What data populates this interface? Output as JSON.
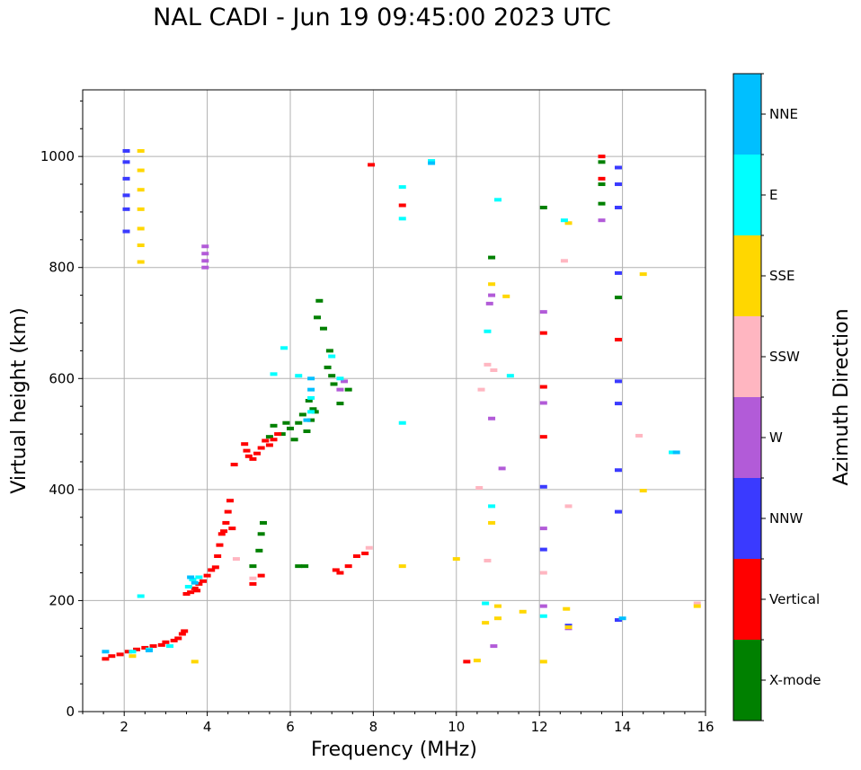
{
  "chart_data": {
    "type": "scatter",
    "title": "NAL CADI - Jun 19 09:45:00 2023 UTC",
    "xlabel": "Frequency (MHz)",
    "ylabel": "Virtual height (km)",
    "xlim": [
      1,
      16
    ],
    "ylim": [
      0,
      1120
    ],
    "xticks": [
      2,
      4,
      6,
      8,
      10,
      12,
      14,
      16
    ],
    "yticks": [
      0,
      200,
      400,
      600,
      800,
      1000
    ],
    "grid": true,
    "colorbar": {
      "label": "Azimuth Direction",
      "categories": [
        "X-mode",
        "Vertical",
        "NNW",
        "W",
        "SSW",
        "SSE",
        "E",
        "NNE"
      ],
      "colors": [
        "#008000",
        "#ff0000",
        "#3a3aff",
        "#b25bd8",
        "#ffb6c1",
        "#ffd700",
        "#00ffff",
        "#00bfff"
      ]
    },
    "series": [
      {
        "name": "X-mode",
        "points": [
          [
            5.1,
            262
          ],
          [
            5.25,
            290
          ],
          [
            5.3,
            320
          ],
          [
            5.35,
            340
          ],
          [
            5.5,
            495
          ],
          [
            5.6,
            515
          ],
          [
            5.8,
            500
          ],
          [
            5.9,
            520
          ],
          [
            6.0,
            510
          ],
          [
            6.1,
            490
          ],
          [
            6.2,
            520
          ],
          [
            6.2,
            262
          ],
          [
            6.3,
            535
          ],
          [
            6.35,
            262
          ],
          [
            6.4,
            505
          ],
          [
            6.45,
            560
          ],
          [
            6.6,
            540
          ],
          [
            6.65,
            710
          ],
          [
            6.7,
            740
          ],
          [
            6.8,
            690
          ],
          [
            6.9,
            620
          ],
          [
            6.95,
            650
          ],
          [
            7.0,
            605
          ],
          [
            7.05,
            590
          ],
          [
            7.2,
            555
          ],
          [
            7.4,
            580
          ],
          [
            6.5,
            525
          ],
          [
            6.55,
            545
          ],
          [
            10.85,
            818
          ],
          [
            12.1,
            908
          ],
          [
            13.9,
            746
          ],
          [
            13.5,
            990
          ],
          [
            13.5,
            950
          ],
          [
            13.5,
            915
          ]
        ]
      },
      {
        "name": "Vertical",
        "points": [
          [
            1.55,
            95
          ],
          [
            1.7,
            100
          ],
          [
            1.9,
            103
          ],
          [
            2.1,
            108
          ],
          [
            2.3,
            112
          ],
          [
            2.5,
            115
          ],
          [
            2.7,
            118
          ],
          [
            2.9,
            120
          ],
          [
            3.0,
            125
          ],
          [
            3.2,
            128
          ],
          [
            3.3,
            132
          ],
          [
            3.4,
            140
          ],
          [
            3.45,
            145
          ],
          [
            3.5,
            212
          ],
          [
            3.6,
            215
          ],
          [
            3.7,
            222
          ],
          [
            3.75,
            218
          ],
          [
            3.8,
            230
          ],
          [
            3.9,
            235
          ],
          [
            4.0,
            245
          ],
          [
            4.1,
            255
          ],
          [
            4.2,
            260
          ],
          [
            4.25,
            280
          ],
          [
            4.3,
            300
          ],
          [
            4.35,
            320
          ],
          [
            4.4,
            325
          ],
          [
            4.45,
            340
          ],
          [
            4.5,
            360
          ],
          [
            4.55,
            380
          ],
          [
            4.6,
            330
          ],
          [
            4.65,
            445
          ],
          [
            4.9,
            482
          ],
          [
            4.95,
            470
          ],
          [
            5.0,
            460
          ],
          [
            5.1,
            455
          ],
          [
            5.2,
            465
          ],
          [
            5.3,
            475
          ],
          [
            5.4,
            488
          ],
          [
            5.5,
            480
          ],
          [
            5.6,
            490
          ],
          [
            5.7,
            500
          ],
          [
            5.1,
            230
          ],
          [
            5.3,
            245
          ],
          [
            7.1,
            255
          ],
          [
            7.2,
            250
          ],
          [
            7.4,
            262
          ],
          [
            7.6,
            280
          ],
          [
            7.8,
            285
          ],
          [
            7.95,
            985
          ],
          [
            8.7,
            912
          ],
          [
            10.25,
            90
          ],
          [
            12.1,
            585
          ],
          [
            12.1,
            495
          ],
          [
            12.1,
            682
          ],
          [
            13.9,
            670
          ],
          [
            13.5,
            1000
          ],
          [
            13.5,
            960
          ]
        ]
      },
      {
        "name": "NNW",
        "points": [
          [
            2.05,
            1010
          ],
          [
            2.05,
            990
          ],
          [
            2.05,
            960
          ],
          [
            2.05,
            930
          ],
          [
            2.05,
            905
          ],
          [
            2.05,
            865
          ],
          [
            12.1,
            292
          ],
          [
            12.1,
            405
          ],
          [
            12.7,
            155
          ],
          [
            13.9,
            980
          ],
          [
            13.9,
            950
          ],
          [
            13.9,
            908
          ],
          [
            13.9,
            790
          ],
          [
            13.9,
            595
          ],
          [
            13.9,
            555
          ],
          [
            13.9,
            435
          ],
          [
            13.9,
            360
          ],
          [
            13.9,
            165
          ]
        ]
      },
      {
        "name": "W",
        "points": [
          [
            3.95,
            838
          ],
          [
            3.95,
            825
          ],
          [
            3.95,
            812
          ],
          [
            3.95,
            800
          ],
          [
            7.3,
            595
          ],
          [
            7.2,
            580
          ],
          [
            10.8,
            735
          ],
          [
            10.85,
            750
          ],
          [
            10.85,
            528
          ],
          [
            11.1,
            438
          ],
          [
            10.9,
            118
          ],
          [
            12.1,
            720
          ],
          [
            12.1,
            556
          ],
          [
            12.1,
            330
          ],
          [
            12.1,
            190
          ],
          [
            13.5,
            885
          ],
          [
            12.7,
            150
          ]
        ]
      },
      {
        "name": "SSW",
        "points": [
          [
            4.7,
            275
          ],
          [
            5.1,
            240
          ],
          [
            7.9,
            295
          ],
          [
            10.6,
            580
          ],
          [
            10.75,
            625
          ],
          [
            10.9,
            615
          ],
          [
            10.55,
            403
          ],
          [
            10.75,
            272
          ],
          [
            12.1,
            250
          ],
          [
            12.7,
            370
          ],
          [
            14.4,
            497
          ],
          [
            12.6,
            812
          ],
          [
            15.8,
            195
          ]
        ]
      },
      {
        "name": "SSE",
        "points": [
          [
            2.4,
            1010
          ],
          [
            2.4,
            975
          ],
          [
            2.4,
            940
          ],
          [
            2.4,
            905
          ],
          [
            2.4,
            870
          ],
          [
            2.4,
            840
          ],
          [
            2.4,
            810
          ],
          [
            2.2,
            100
          ],
          [
            3.7,
            90
          ],
          [
            8.7,
            262
          ],
          [
            10.0,
            275
          ],
          [
            10.85,
            340
          ],
          [
            10.85,
            770
          ],
          [
            11.2,
            748
          ],
          [
            11.0,
            190
          ],
          [
            11.0,
            168
          ],
          [
            10.7,
            160
          ],
          [
            10.5,
            92
          ],
          [
            11.6,
            180
          ],
          [
            12.1,
            90
          ],
          [
            12.65,
            185
          ],
          [
            12.7,
            152
          ],
          [
            12.7,
            880
          ],
          [
            14.5,
            788
          ],
          [
            14.5,
            398
          ],
          [
            15.8,
            190
          ]
        ]
      },
      {
        "name": "E",
        "points": [
          [
            2.2,
            108
          ],
          [
            2.4,
            208
          ],
          [
            2.6,
            112
          ],
          [
            3.1,
            118
          ],
          [
            3.55,
            225
          ],
          [
            3.65,
            238
          ],
          [
            3.8,
            242
          ],
          [
            5.6,
            608
          ],
          [
            5.85,
            655
          ],
          [
            6.2,
            605
          ],
          [
            6.5,
            540
          ],
          [
            6.5,
            565
          ],
          [
            7.2,
            600
          ],
          [
            7.0,
            640
          ],
          [
            8.7,
            945
          ],
          [
            8.7,
            888
          ],
          [
            8.7,
            520
          ],
          [
            9.4,
            992
          ],
          [
            10.7,
            195
          ],
          [
            10.75,
            685
          ],
          [
            10.85,
            370
          ],
          [
            11.0,
            922
          ],
          [
            11.3,
            605
          ],
          [
            12.1,
            172
          ],
          [
            12.6,
            885
          ],
          [
            15.2,
            467
          ]
        ]
      },
      {
        "name": "NNE",
        "points": [
          [
            1.55,
            108
          ],
          [
            2.6,
            110
          ],
          [
            3.6,
            242
          ],
          [
            3.7,
            232
          ],
          [
            6.4,
            525
          ],
          [
            6.5,
            600
          ],
          [
            6.5,
            580
          ],
          [
            9.4,
            988
          ],
          [
            15.3,
            467
          ],
          [
            14.0,
            168
          ]
        ]
      }
    ]
  }
}
